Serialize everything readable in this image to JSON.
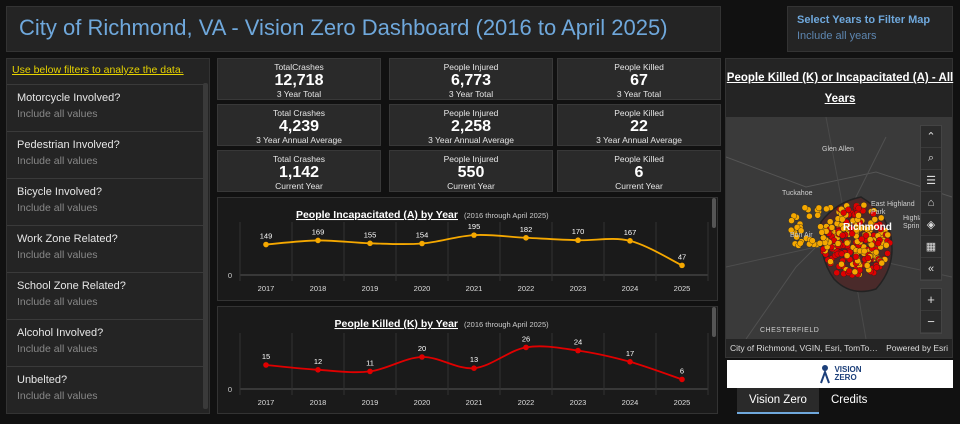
{
  "header": {
    "title": "City of Richmond, VA - Vision Zero Dashboard (2016 to April 2025)"
  },
  "year_filter": {
    "title": "Select Years to Filter Map",
    "value": "Include all years"
  },
  "left_panel": {
    "hint": "Use below filters to analyze the data.",
    "filters": [
      {
        "question": "Motorcycle Involved?",
        "value": "Include all values"
      },
      {
        "question": "Pedestrian Involved?",
        "value": "Include all values"
      },
      {
        "question": "Bicycle Involved?",
        "value": "Include all values"
      },
      {
        "question": "Work Zone Related?",
        "value": "Include all values"
      },
      {
        "question": "School Zone Related?",
        "value": "Include all values"
      },
      {
        "question": "Alcohol Involved?",
        "value": "Include all values"
      },
      {
        "question": "Unbelted?",
        "value": "Include all values"
      }
    ]
  },
  "stats": [
    {
      "label": "TotalCrashes",
      "value": "12,718",
      "sub": "3 Year Total"
    },
    {
      "label": "People Injured",
      "value": "6,773",
      "sub": "3 Year Total"
    },
    {
      "label": "People Killed",
      "value": "67",
      "sub": "3 Year Total"
    },
    {
      "label": "Total Crashes",
      "value": "4,239",
      "sub": "3 Year Annual Average"
    },
    {
      "label": "People Injured",
      "value": "2,258",
      "sub": "3 Year Annual Average"
    },
    {
      "label": "People Killed",
      "value": "22",
      "sub": "3 Year Annual Average"
    },
    {
      "label": "Total Crashes",
      "value": "1,142",
      "sub": "Current Year"
    },
    {
      "label": "People Injured",
      "value": "550",
      "sub": "Current Year"
    },
    {
      "label": "People Killed",
      "value": "6",
      "sub": "Current Year"
    }
  ],
  "chart_data": [
    {
      "type": "line",
      "title": "People Incapacitated (A) by Year",
      "subtitle": "(2016 through April 2025)",
      "categories": [
        "2017",
        "2018",
        "2019",
        "2020",
        "2021",
        "2022",
        "2023",
        "2024",
        "2025"
      ],
      "values": [
        149,
        169,
        155,
        154,
        195,
        182,
        170,
        167,
        47
      ],
      "ylim": [
        0,
        220
      ],
      "ytick": "0",
      "color": "#f5a800"
    },
    {
      "type": "line",
      "title": "People Killed (K) by Year",
      "subtitle": "(2016 through April 2025)",
      "categories": [
        "2017",
        "2018",
        "2019",
        "2020",
        "2021",
        "2022",
        "2023",
        "2024",
        "2025"
      ],
      "values": [
        15,
        12,
        11,
        20,
        13,
        26,
        24,
        17,
        6
      ],
      "ylim": [
        0,
        30
      ],
      "ytick": "0",
      "color": "#e00000"
    }
  ],
  "map": {
    "title": "People Killed (K) or Incapacitated (A) - All Years",
    "labels": {
      "glen_allen": "Glen Allen",
      "tuckahoe": "Tuckahoe",
      "east_highland_park": "East Highland Park",
      "highland_springs": "Highland Sprin",
      "bon_air": "Bon Air",
      "richmond": "Richmond",
      "chesterfield": "CHESTERFIELD"
    },
    "attribution": "City of Richmond, VGIN, Esri, TomTo…",
    "powered_by": "Powered by Esri",
    "tools": [
      "collapse-icon",
      "search-icon",
      "list-icon",
      "home-icon",
      "layers-icon",
      "qr-icon",
      "chevrons-left-icon"
    ],
    "colors": {
      "killed": "#e00000",
      "incapacitated": "#f5a800"
    }
  },
  "logo": {
    "line1": "VISION",
    "line2": "ZERO"
  },
  "tabs": [
    {
      "label": "Vision Zero",
      "active": true
    },
    {
      "label": "Credits",
      "active": false
    }
  ]
}
